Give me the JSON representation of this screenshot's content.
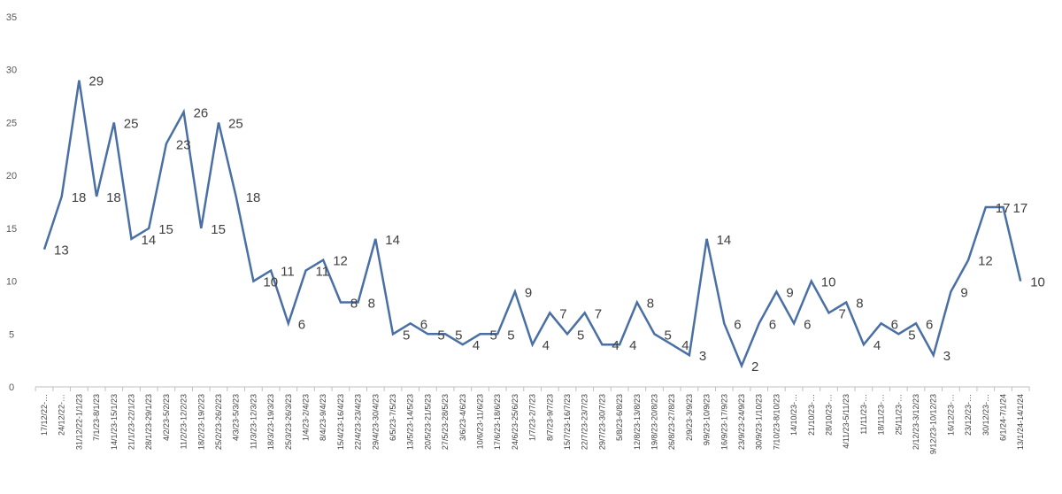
{
  "chart_data": {
    "type": "line",
    "title": "",
    "xlabel": "",
    "ylabel": "",
    "ylim": [
      0,
      35
    ],
    "yticks": [
      0,
      5,
      10,
      15,
      20,
      25,
      30,
      35
    ],
    "grid": false,
    "legend": "none",
    "colors": {
      "line": "#4a6fa5",
      "axis": "#bfbfbf",
      "text": "#404040"
    },
    "categories": [
      "17/12/22-…",
      "24/12/22-…",
      "31/12/22-1/1/23",
      "7/1/23-8/1/23",
      "14/1/23-15/1/23",
      "21/1/23-22/1/23",
      "28/1/23-29/1/23",
      "4/2/23-5/2/23",
      "11/2/23-12/2/23",
      "18/2/23-19/2/23",
      "25/2/23-26/2/23",
      "4/3/23-5/3/23",
      "11/3/23-12/3/23",
      "18/3/23-19/3/23",
      "25/3/23-26/3/23",
      "1/4/23-2/4/23",
      "8/4/23-9/4/23",
      "15/4/23-16/4/23",
      "22/4/23-23/4/23",
      "29/4/23-30/4/23",
      "6/5/23-7/5/23",
      "13/5/23-14/5/23",
      "20/5/23-21/5/23",
      "27/5/23-28/5/23",
      "3/6/23-4/6/23",
      "10/6/23-11/6/23",
      "17/6/23-18/6/23",
      "24/6/23-25/6/23",
      "1/7/23-2/7/23",
      "8/7/23-9/7/23",
      "15/7/23-16/7/23",
      "22/7/23-23/7/23",
      "29/7/23-30/7/23",
      "5/8/23-6/8/23",
      "12/8/23-13/8/23",
      "19/8/23-20/8/23",
      "26/8/23-27/8/23",
      "2/9/23-3/9/23",
      "9/9/23-10/9/23",
      "16/9/23-17/9/23",
      "23/9/23-24/9/23",
      "30/9/23-1/10/23",
      "7/10/23-8/10/23",
      "14/10/23-…",
      "21/10/23-…",
      "28/10/23-…",
      "4/11/23-5/11/23",
      "11/11/23-…",
      "18/11/23-…",
      "25/11/23-…",
      "2/12/23-3/12/23",
      "9/12/23-10/12/23",
      "16/12/23-…",
      "23/12/23-…",
      "30/12/23-…",
      "6/1/24-7/1/24",
      "13/1/24-14/1/24"
    ],
    "series": [
      {
        "values": [
          13,
          18,
          29,
          18,
          25,
          14,
          15,
          23,
          26,
          15,
          25,
          18,
          10,
          11,
          6,
          11,
          12,
          8,
          8,
          14,
          5,
          6,
          5,
          5,
          4,
          5,
          5,
          9,
          4,
          7,
          5,
          7,
          4,
          4,
          8,
          5,
          4,
          3,
          14,
          6,
          2,
          6,
          9,
          6,
          10,
          7,
          8,
          4,
          6,
          5,
          6,
          3,
          9,
          12,
          17,
          17,
          10
        ]
      }
    ]
  }
}
